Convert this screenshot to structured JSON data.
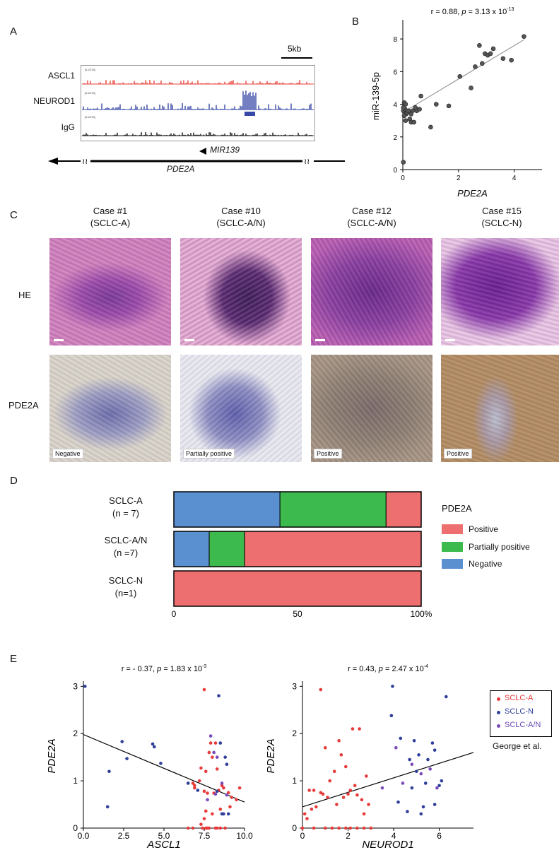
{
  "panels": {
    "a": "A",
    "b": "B",
    "c": "C",
    "d": "D",
    "e": "E"
  },
  "panel_a": {
    "scale_label": "5kb",
    "tracks": [
      {
        "name": "ASCL1",
        "range": "[0-2276]",
        "color": "#e8453c"
      },
      {
        "name": "NEUROD1",
        "range": "[0-2276]",
        "color": "#3848a8"
      },
      {
        "name": "IgG",
        "range": "[0-2276]",
        "color": "#111111"
      }
    ],
    "gene_mir": "MIR139",
    "gene_host": "PDE2A"
  },
  "panel_c": {
    "cases": [
      {
        "title": "Case #1",
        "subtype": "(SCLC-A)",
        "ihc": "Negative"
      },
      {
        "title": "Case #10",
        "subtype": "(SCLC-A/N)",
        "ihc": "Partially positive"
      },
      {
        "title": "Case #12",
        "subtype": "(SCLC-A/N)",
        "ihc": "Positive"
      },
      {
        "title": "Case #15",
        "subtype": "(SCLC-N)",
        "ihc": "Positive"
      }
    ],
    "rows": [
      "HE",
      "PDE2A"
    ]
  },
  "colors": {
    "positive": "#ee6f6f",
    "partial": "#3dba4e",
    "negative": "#5a8fd0",
    "line": "#9a9a9a",
    "dot": "#555555",
    "red": "#e83a3a",
    "blue": "#2f3f9a"
  },
  "chart_data": [
    {
      "id": "B",
      "type": "scatter",
      "title_pre": "r = 0.88, ",
      "title_p": "p",
      "title_post": " = 3.13 x 10",
      "title_exp": "-13",
      "xlabel": "PDE2A",
      "ylabel": "miR-139-5p",
      "xlim": [
        0,
        5
      ],
      "ylim": [
        0,
        9
      ],
      "xticks": [
        0,
        2,
        4
      ],
      "yticks": [
        0,
        2,
        4,
        6,
        8
      ],
      "fit": {
        "x": [
          0.05,
          4.35
        ],
        "y": [
          3.55,
          7.95
        ]
      },
      "points": [
        [
          0.02,
          0.45
        ],
        [
          0.02,
          3.6
        ],
        [
          0.05,
          4.1
        ],
        [
          0.08,
          3.7
        ],
        [
          0.1,
          4.0
        ],
        [
          0.12,
          3.4
        ],
        [
          0.15,
          3.5
        ],
        [
          0.05,
          3.3
        ],
        [
          0.2,
          3.6
        ],
        [
          0.25,
          3.1
        ],
        [
          0.3,
          2.9
        ],
        [
          0.35,
          3.6
        ],
        [
          0.4,
          2.9
        ],
        [
          0.45,
          3.8
        ],
        [
          0.5,
          3.6
        ],
        [
          0.6,
          3.7
        ],
        [
          0.65,
          4.5
        ],
        [
          0.1,
          3.0
        ],
        [
          0.3,
          3.4
        ],
        [
          0.02,
          3.8
        ],
        [
          1.0,
          2.6
        ],
        [
          1.2,
          4.0
        ],
        [
          1.65,
          3.9
        ],
        [
          2.05,
          5.7
        ],
        [
          2.45,
          5.0
        ],
        [
          2.6,
          6.3
        ],
        [
          2.75,
          7.6
        ],
        [
          2.85,
          6.5
        ],
        [
          2.95,
          7.1
        ],
        [
          3.05,
          7.0
        ],
        [
          3.15,
          7.1
        ],
        [
          3.25,
          7.4
        ],
        [
          3.6,
          6.8
        ],
        [
          3.9,
          6.7
        ],
        [
          4.35,
          8.15
        ]
      ]
    },
    {
      "id": "D",
      "type": "bar",
      "orientation": "horizontal",
      "stacked": true,
      "categories": [
        [
          "SCLC-A",
          "(n = 7)"
        ],
        [
          "SCLC-A/N",
          "(n =7)"
        ],
        [
          "SCLC-N",
          "(n=1)"
        ]
      ],
      "series": [
        {
          "name": "Negative",
          "values": [
            42.9,
            14.3,
            0
          ]
        },
        {
          "name": "Partially positive",
          "values": [
            42.9,
            14.3,
            0
          ]
        },
        {
          "name": "Positive",
          "values": [
            14.2,
            71.4,
            100
          ]
        }
      ],
      "legend_title": "PDE2A",
      "legend_order": [
        "Positive",
        "Partially positive",
        "Negative"
      ],
      "xticks": [
        "0",
        "50",
        "100%"
      ],
      "xlim": [
        0,
        100
      ]
    },
    {
      "id": "E1",
      "type": "scatter",
      "title_pre": "r = - 0.37, ",
      "title_p": "p",
      "title_post": " = 1.83 x 10",
      "title_exp": "-3",
      "xlabel": "ASCL1",
      "ylabel": "PDE2A",
      "xlim": [
        0,
        10
      ],
      "ylim": [
        0,
        3.05
      ],
      "xticks": [
        "0.0",
        "2.5",
        "5.0",
        "7.5",
        "10.0"
      ],
      "xtick_vals": [
        0,
        2.5,
        5,
        7.5,
        10
      ],
      "yticks": [
        0,
        1,
        2,
        3
      ],
      "fit": {
        "x": [
          0,
          10
        ],
        "y": [
          1.98,
          0.55
        ]
      },
      "series": [
        {
          "name": "SCLC-A",
          "points": [
            [
              7.5,
              2.93
            ],
            [
              7.3,
              0.08
            ],
            [
              7.4,
              0.0
            ],
            [
              7.6,
              0.0
            ],
            [
              7.7,
              0.0
            ],
            [
              7.8,
              0.0
            ],
            [
              8.2,
              0.0
            ],
            [
              8.3,
              0.0
            ],
            [
              8.5,
              0.0
            ],
            [
              8.8,
              0.0
            ],
            [
              6.5,
              0.0
            ],
            [
              6.8,
              0.0
            ],
            [
              7.5,
              0.78
            ],
            [
              7.7,
              0.74
            ],
            [
              7.8,
              1.6
            ],
            [
              7.9,
              1.8
            ],
            [
              8.0,
              1.5
            ],
            [
              7.6,
              1.2
            ],
            [
              7.3,
              1.27
            ],
            [
              7.2,
              1.0
            ],
            [
              6.8,
              0.95
            ],
            [
              6.9,
              0.85
            ],
            [
              8.1,
              0.74
            ],
            [
              8.4,
              0.8
            ],
            [
              8.6,
              0.9
            ],
            [
              8.7,
              0.85
            ],
            [
              9.0,
              0.75
            ],
            [
              9.2,
              0.65
            ],
            [
              9.5,
              0.6
            ],
            [
              9.7,
              0.85
            ],
            [
              8.5,
              0.4
            ],
            [
              8.0,
              0.3
            ],
            [
              7.6,
              0.36
            ],
            [
              7.5,
              0.2
            ],
            [
              6.9,
              0.9
            ],
            [
              8.2,
              1.8
            ],
            [
              8.3,
              1.25
            ],
            [
              9.1,
              0.45
            ]
          ]
        },
        {
          "name": "SCLC-N",
          "points": [
            [
              0.1,
              3.0
            ],
            [
              1.6,
              1.2
            ],
            [
              1.5,
              0.45
            ],
            [
              2.4,
              1.83
            ],
            [
              2.7,
              1.47
            ],
            [
              4.3,
              1.78
            ],
            [
              4.4,
              1.72
            ],
            [
              4.8,
              1.37
            ],
            [
              6.5,
              0.95
            ],
            [
              7.1,
              0.8
            ],
            [
              8.4,
              2.8
            ],
            [
              8.5,
              1.8
            ],
            [
              8.8,
              1.5
            ],
            [
              8.9,
              1.35
            ],
            [
              8.6,
              0.3
            ],
            [
              8.7,
              0.3
            ],
            [
              9.0,
              0.3
            ],
            [
              8.3,
              0.78
            ]
          ]
        },
        {
          "name": "SCLC-A/N",
          "points": [
            [
              7.9,
              1.95
            ],
            [
              8.1,
              1.6
            ],
            [
              8.3,
              1.5
            ],
            [
              8.2,
              0.72
            ],
            [
              8.9,
              0.7
            ],
            [
              8.6,
              0.95
            ],
            [
              7.7,
              0.6
            ]
          ]
        }
      ]
    },
    {
      "id": "E2",
      "type": "scatter",
      "title_pre": "r = 0.43, ",
      "title_p": "p",
      "title_post": " = 2.47 x 10",
      "title_exp": "-4",
      "xlabel": "NEUROD1",
      "ylabel": "PDE2A",
      "xlim": [
        0,
        7.5
      ],
      "ylim": [
        0,
        3.05
      ],
      "xticks": [
        "0",
        "2",
        "4",
        "6"
      ],
      "xtick_vals": [
        0,
        2,
        4,
        6
      ],
      "yticks": [
        0,
        1,
        2,
        3
      ],
      "fit": {
        "x": [
          0,
          7.5
        ],
        "y": [
          0.45,
          1.6
        ]
      },
      "series": [
        {
          "name": "SCLC-A",
          "points": [
            [
              0.8,
              2.93
            ],
            [
              0.1,
              0.3
            ],
            [
              0.2,
              0.2
            ],
            [
              0.3,
              0.8
            ],
            [
              0.5,
              0.8
            ],
            [
              0.6,
              0.45
            ],
            [
              0.8,
              0.75
            ],
            [
              0.9,
              0.72
            ],
            [
              1.1,
              0.65
            ],
            [
              1.0,
              1.7
            ],
            [
              1.5,
              0.5
            ],
            [
              1.6,
              1.85
            ],
            [
              1.7,
              1.55
            ],
            [
              1.8,
              0.65
            ],
            [
              2.0,
              0.72
            ],
            [
              2.1,
              0.8
            ],
            [
              2.2,
              2.1
            ],
            [
              2.3,
              0.9
            ],
            [
              2.4,
              0.7
            ],
            [
              2.6,
              0.6
            ],
            [
              2.7,
              0.3
            ],
            [
              2.8,
              1.1
            ],
            [
              2.9,
              0.5
            ],
            [
              0.0,
              0.0
            ],
            [
              0.5,
              0.0
            ],
            [
              1.0,
              0.0
            ],
            [
              1.3,
              0.0
            ],
            [
              1.6,
              0.0
            ],
            [
              1.9,
              0.0
            ],
            [
              2.1,
              0.0
            ],
            [
              2.4,
              0.0
            ],
            [
              2.7,
              0.0
            ],
            [
              3.0,
              0.0
            ],
            [
              1.2,
              1.0
            ],
            [
              1.4,
              1.2
            ],
            [
              0.4,
              0.4
            ],
            [
              2.5,
              2.1
            ],
            [
              1.9,
              1.3
            ]
          ]
        },
        {
          "name": "SCLC-N",
          "points": [
            [
              3.95,
              3.0
            ],
            [
              3.9,
              2.38
            ],
            [
              4.3,
              1.9
            ],
            [
              4.9,
              1.85
            ],
            [
              5.1,
              1.55
            ],
            [
              5.5,
              1.45
            ],
            [
              5.7,
              1.8
            ],
            [
              5.8,
              1.65
            ],
            [
              6.3,
              2.78
            ],
            [
              6.1,
              1.0
            ],
            [
              6.0,
              0.9
            ],
            [
              5.4,
              0.95
            ],
            [
              4.8,
              0.85
            ],
            [
              4.2,
              0.55
            ],
            [
              4.6,
              0.35
            ],
            [
              5.3,
              0.45
            ],
            [
              5.8,
              0.5
            ],
            [
              5.2,
              0.3
            ],
            [
              5.0,
              1.2
            ],
            [
              4.7,
              1.45
            ]
          ]
        },
        {
          "name": "SCLC-A/N",
          "points": [
            [
              4.1,
              1.7
            ],
            [
              4.8,
              1.35
            ],
            [
              5.2,
              1.15
            ],
            [
              5.6,
              1.25
            ],
            [
              4.4,
              0.95
            ],
            [
              5.9,
              0.85
            ],
            [
              3.5,
              0.85
            ]
          ]
        }
      ],
      "legend": [
        "SCLC-A",
        "SCLC-N",
        "SCLC-A/N"
      ],
      "source": "George et al."
    }
  ]
}
